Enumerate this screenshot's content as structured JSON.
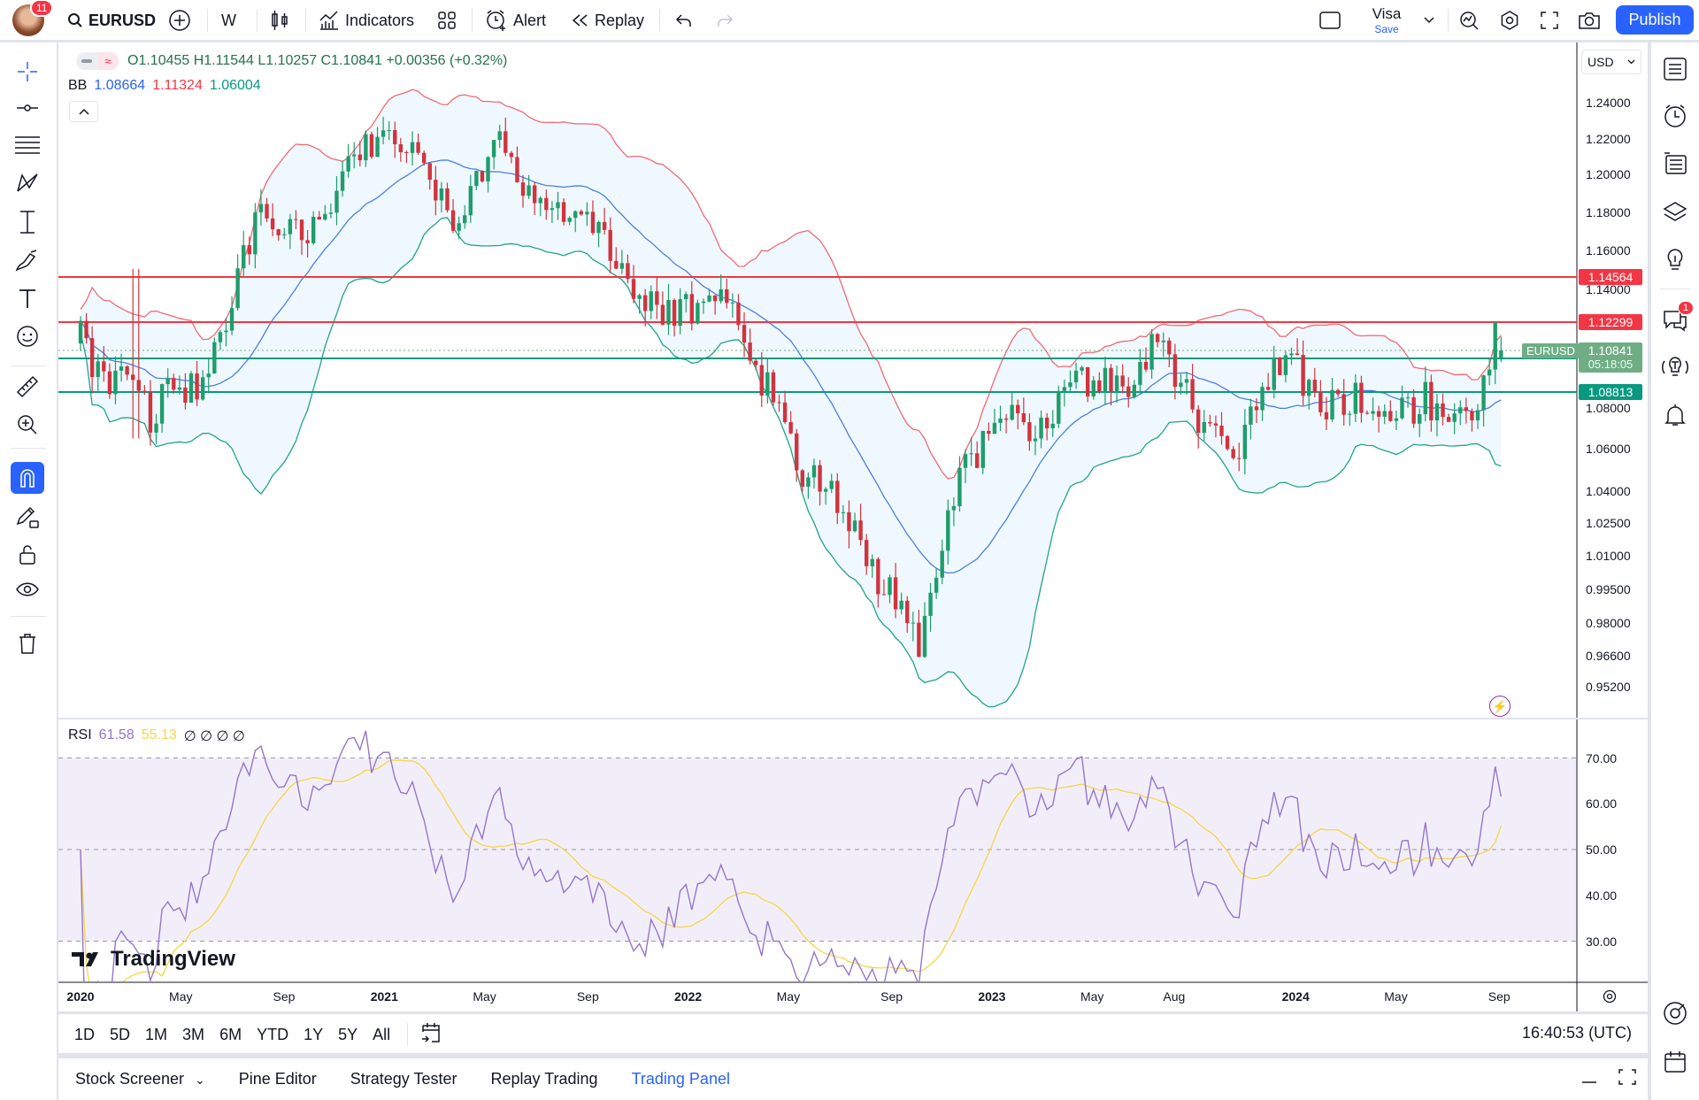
{
  "topbar": {
    "notification_count": "11",
    "symbol": "EURUSD",
    "interval": "W",
    "indicators_label": "Indicators",
    "alert_label": "Alert",
    "replay_label": "Replay",
    "layout_name": "Visa",
    "save_label": "Save",
    "publish_label": "Publish"
  },
  "legend": {
    "ohlc": "O1.10455 H1.11544 L1.10257 C1.10841 +0.00356 (+0.32%)",
    "bb_label": "BB",
    "bb_basis": "1.08664",
    "bb_upper": "1.11324",
    "bb_lower": "1.06004",
    "rsi_label": "RSI",
    "rsi_value": "61.58",
    "rsi_ma": "55.13",
    "rsi_extra": "∅ ∅ ∅ ∅"
  },
  "price_axis": {
    "currency": "USD",
    "ticks": [
      "1.24000",
      "1.22000",
      "1.20000",
      "1.18000",
      "1.16000",
      "1.14000",
      "1.08000",
      "1.06000",
      "1.04000",
      "1.02500",
      "1.01000",
      "0.99500",
      "0.98000",
      "0.96600",
      "0.95200"
    ],
    "levels": [
      {
        "label": "1.14564",
        "value": 1.14564,
        "color": "#f23645"
      },
      {
        "label": "1.12299",
        "value": 1.12299,
        "color": "#f23645"
      },
      {
        "label": "1.10431",
        "value": 1.10431,
        "color": "#089981"
      },
      {
        "label": "1.08813",
        "value": 1.08813,
        "color": "#089981"
      }
    ],
    "current_symbol": "EURUSD",
    "current_price": "1.10841",
    "countdown": "05:18:05"
  },
  "rsi_axis": {
    "ticks": [
      "70.00",
      "60.00",
      "50.00",
      "40.00",
      "30.00"
    ]
  },
  "time_axis": {
    "labels": [
      {
        "text": "2020",
        "t": 2020.0,
        "bold": true
      },
      {
        "text": "May",
        "t": 2020.33
      },
      {
        "text": "Sep",
        "t": 2020.67
      },
      {
        "text": "2021",
        "t": 2021.0,
        "bold": true
      },
      {
        "text": "May",
        "t": 2021.33
      },
      {
        "text": "Sep",
        "t": 2021.67
      },
      {
        "text": "2022",
        "t": 2022.0,
        "bold": true
      },
      {
        "text": "May",
        "t": 2022.33
      },
      {
        "text": "Sep",
        "t": 2022.67
      },
      {
        "text": "2023",
        "t": 2023.0,
        "bold": true
      },
      {
        "text": "May",
        "t": 2023.33
      },
      {
        "text": "Aug",
        "t": 2023.6
      },
      {
        "text": "2024",
        "t": 2024.0,
        "bold": true
      },
      {
        "text": "May",
        "t": 2024.33
      },
      {
        "text": "Sep",
        "t": 2024.67
      }
    ]
  },
  "range_bar": {
    "ranges": [
      "1D",
      "5D",
      "1M",
      "3M",
      "6M",
      "YTD",
      "1Y",
      "5Y",
      "All"
    ],
    "clock": "16:40:53 (UTC)"
  },
  "bottom_tabs": [
    {
      "label": "Stock Screener",
      "dropdown": true
    },
    {
      "label": "Pine Editor"
    },
    {
      "label": "Strategy Tester"
    },
    {
      "label": "Replay Trading"
    },
    {
      "label": "Trading Panel",
      "active": true
    }
  ],
  "right_sidebar": {
    "chat_badge": "1"
  },
  "watermark": "TradingView",
  "colors": {
    "up": "#1f9d6b",
    "down": "#d0343f",
    "bb_basis": "#4e7fe0",
    "bb_upper": "#f06a74",
    "bb_lower": "#22a38a",
    "rsi": "#9575cd",
    "rsi_ma": "#f5d547",
    "accent": "#2962ff"
  },
  "chart_data": {
    "type": "candlestick",
    "symbol": "EURUSD",
    "interval": "1W",
    "x_range": [
      2020.0,
      2024.68
    ],
    "close_path": [
      [
        2020.0,
        1.115
      ],
      [
        2020.08,
        1.09
      ],
      [
        2020.18,
        1.1
      ],
      [
        2020.22,
        1.075
      ],
      [
        2020.3,
        1.09
      ],
      [
        2020.4,
        1.09
      ],
      [
        2020.48,
        1.125
      ],
      [
        2020.58,
        1.18
      ],
      [
        2020.7,
        1.17
      ],
      [
        2020.8,
        1.175
      ],
      [
        2020.92,
        1.215
      ],
      [
        2021.02,
        1.225
      ],
      [
        2021.12,
        1.205
      ],
      [
        2021.22,
        1.175
      ],
      [
        2021.33,
        1.205
      ],
      [
        2021.4,
        1.22
      ],
      [
        2021.47,
        1.19
      ],
      [
        2021.55,
        1.18
      ],
      [
        2021.65,
        1.175
      ],
      [
        2021.75,
        1.16
      ],
      [
        2021.85,
        1.13
      ],
      [
        2022.0,
        1.13
      ],
      [
        2022.12,
        1.14
      ],
      [
        2022.2,
        1.1
      ],
      [
        2022.3,
        1.085
      ],
      [
        2022.38,
        1.045
      ],
      [
        2022.48,
        1.04
      ],
      [
        2022.55,
        1.02
      ],
      [
        2022.62,
        1.0
      ],
      [
        2022.7,
        0.985
      ],
      [
        2022.76,
        0.97
      ],
      [
        2022.82,
        1.0
      ],
      [
        2022.88,
        1.04
      ],
      [
        2022.97,
        1.065
      ],
      [
        2023.05,
        1.08
      ],
      [
        2023.13,
        1.06
      ],
      [
        2023.25,
        1.09
      ],
      [
        2023.35,
        1.095
      ],
      [
        2023.45,
        1.085
      ],
      [
        2023.53,
        1.115
      ],
      [
        2023.6,
        1.1
      ],
      [
        2023.7,
        1.07
      ],
      [
        2023.8,
        1.055
      ],
      [
        2023.88,
        1.09
      ],
      [
        2023.98,
        1.105
      ],
      [
        2024.08,
        1.08
      ],
      [
        2024.2,
        1.085
      ],
      [
        2024.3,
        1.07
      ],
      [
        2024.42,
        1.085
      ],
      [
        2024.5,
        1.075
      ],
      [
        2024.58,
        1.08
      ],
      [
        2024.63,
        1.1
      ],
      [
        2024.66,
        1.12
      ],
      [
        2024.68,
        1.10841
      ]
    ],
    "last_bar": {
      "open": 1.10455,
      "high": 1.11544,
      "low": 1.10257,
      "close": 1.10841
    },
    "indicators": {
      "bollinger": {
        "length": 20,
        "mult": 2,
        "basis": 1.08664,
        "upper": 1.11324,
        "lower": 1.06004
      },
      "rsi": {
        "length": 14,
        "value": 61.58,
        "ma": 55.13,
        "upper_band": 70,
        "middle": 50,
        "lower_band": 30
      }
    },
    "horizontal_levels": [
      1.14564,
      1.12299,
      1.10431,
      1.08813
    ],
    "ylim": [
      0.948,
      1.245
    ],
    "rsi_ylim": [
      20,
      80
    ]
  }
}
